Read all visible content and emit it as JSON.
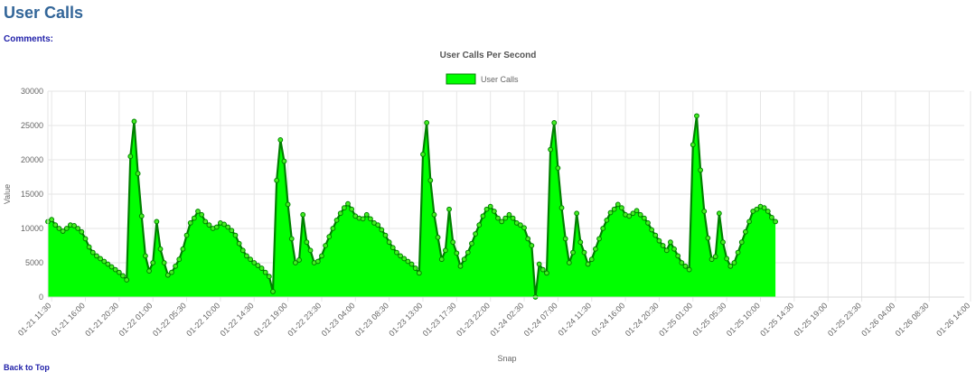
{
  "page": {
    "title": "User Calls",
    "comments_label": "Comments:",
    "footer_label": "Back to Top"
  },
  "chart_data": {
    "type": "area",
    "title": "User Calls Per Second",
    "xlabel": "Snap",
    "ylabel": "Value",
    "ylim": [
      0,
      30000
    ],
    "yticks": [
      0,
      5000,
      10000,
      15000,
      20000,
      25000,
      30000
    ],
    "grid": true,
    "legend_position": "top",
    "colors": {
      "fill": "#00ff00",
      "line": "#008000",
      "marker": "#44ee22"
    },
    "x_tick_labels": [
      "01-21 11:30",
      "01-21 16:00",
      "01-21 20:30",
      "01-22 01:00",
      "01-22 05:30",
      "01-22 10:00",
      "01-22 14:30",
      "01-22 19:00",
      "01-22 23:30",
      "01-23 04:00",
      "01-23 08:30",
      "01-23 13:00",
      "01-23 17:30",
      "01-23 22:00",
      "01-24 02:30",
      "01-24 07:00",
      "01-24 11:30",
      "01-24 16:00",
      "01-24 20:30",
      "01-25 01:00",
      "01-25 05:30",
      "01-25 10:00",
      "01-25 14:30",
      "01-25 19:00",
      "01-25 23:30",
      "01-26 04:00",
      "01-26 08:30",
      "01-26 14:00"
    ],
    "series": [
      {
        "name": "User Calls",
        "start": "01-21 11:00",
        "step_minutes": 30,
        "values": [
          11000,
          11300,
          10500,
          10000,
          9600,
          10000,
          10500,
          10400,
          10000,
          9500,
          8500,
          7300,
          6500,
          6000,
          5600,
          5200,
          4800,
          4400,
          4000,
          3600,
          3100,
          2500,
          20500,
          25600,
          18000,
          11800,
          6000,
          3800,
          5000,
          11000,
          7000,
          5000,
          3200,
          3600,
          4500,
          5500,
          7000,
          9000,
          10800,
          11500,
          12500,
          12000,
          11000,
          10500,
          10000,
          10200,
          10800,
          10600,
          10200,
          9700,
          9000,
          7800,
          6800,
          6000,
          5500,
          5000,
          4600,
          4200,
          3600,
          3000,
          800,
          17000,
          22900,
          19800,
          13500,
          8500,
          5000,
          5400,
          12000,
          8000,
          6800,
          5000,
          5200,
          6000,
          7500,
          8800,
          10000,
          11200,
          12200,
          13000,
          13600,
          12800,
          11800,
          11500,
          11400,
          12000,
          11400,
          10800,
          10500,
          9800,
          9000,
          8000,
          7200,
          6500,
          6000,
          5600,
          5200,
          4800,
          4200,
          3500,
          20800,
          25400,
          17000,
          12000,
          8700,
          5500,
          6800,
          12800,
          8000,
          6400,
          4500,
          5500,
          6500,
          7800,
          9200,
          10500,
          11800,
          12800,
          13200,
          12500,
          11500,
          11000,
          11500,
          12000,
          11500,
          10800,
          10500,
          10100,
          8500,
          7500,
          0,
          4800,
          4000,
          3500,
          21500,
          25400,
          18800,
          13000,
          8500,
          5000,
          6500,
          12200,
          8000,
          6500,
          4800,
          5500,
          7000,
          8500,
          10000,
          11200,
          12300,
          12800,
          13500,
          13000,
          12000,
          11800,
          12200,
          12600,
          12000,
          11500,
          10800,
          9800,
          9000,
          8200,
          7500,
          6800,
          8000,
          7000,
          6000,
          5000,
          4500,
          4000,
          22200,
          26400,
          18500,
          12500,
          8600,
          5500,
          5900,
          12200,
          8000,
          5600,
          4500,
          5000,
          6500,
          8000,
          9500,
          11000,
          12500,
          12800,
          13200,
          13000,
          12500,
          11600,
          11000
        ]
      }
    ]
  }
}
